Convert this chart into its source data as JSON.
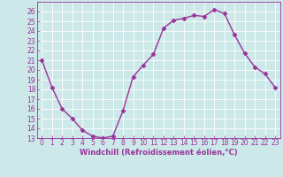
{
  "x": [
    0,
    1,
    2,
    3,
    4,
    5,
    6,
    7,
    8,
    9,
    10,
    11,
    12,
    13,
    14,
    15,
    16,
    17,
    18,
    19,
    20,
    21,
    22,
    23
  ],
  "y": [
    21,
    18.2,
    16,
    15,
    13.8,
    13.2,
    13,
    13.2,
    15.8,
    19.3,
    20.5,
    21.6,
    24.3,
    25.1,
    25.3,
    25.6,
    25.5,
    26.2,
    25.8,
    23.6,
    21.7,
    20.3,
    19.6,
    18.2
  ],
  "line_color": "#993399",
  "marker": "D",
  "marker_size": 2.5,
  "bg_color": "#cce8e8",
  "grid_color": "#ffffff",
  "xlabel": "Windchill (Refroidissement éolien,°C)",
  "xlabel_color": "#993399",
  "tick_color": "#993399",
  "ylim_min": 13,
  "ylim_max": 27,
  "xlim_min": -0.5,
  "xlim_max": 23.5,
  "yticks": [
    13,
    14,
    15,
    16,
    17,
    18,
    19,
    20,
    21,
    22,
    23,
    24,
    25,
    26
  ],
  "xticks": [
    0,
    1,
    2,
    3,
    4,
    5,
    6,
    7,
    8,
    9,
    10,
    11,
    12,
    13,
    14,
    15,
    16,
    17,
    18,
    19,
    20,
    21,
    22,
    23
  ],
  "tick_fontsize": 5.5,
  "xlabel_fontsize": 6.0,
  "linewidth": 1.0
}
